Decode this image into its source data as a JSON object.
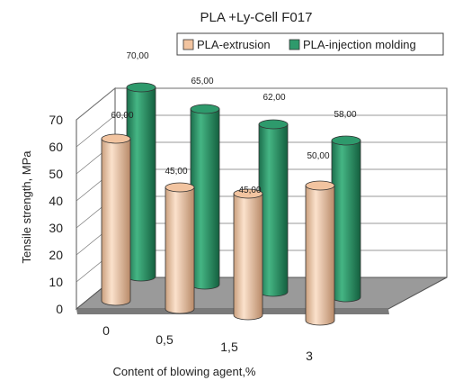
{
  "chart_data": {
    "type": "bar",
    "title": "PLA +Ly-Cell F017",
    "xlabel": "Content of blowing agent,%",
    "ylabel": "Tensile strength, MPa",
    "categories": [
      "0",
      "0,5",
      "1,5",
      "3"
    ],
    "series": [
      {
        "name": "PLA-extrusion",
        "values": [
          60,
          45,
          45,
          50
        ],
        "labels": [
          "60,00",
          "45,00",
          "45,00",
          "50,00"
        ],
        "color": "#F2C4A0"
      },
      {
        "name": "PLA-injection molding",
        "values": [
          70,
          65,
          62,
          58
        ],
        "labels": [
          "70,00",
          "65,00",
          "62,00",
          "58,00"
        ],
        "color": "#2E9A6C"
      }
    ],
    "ylim": [
      0,
      70
    ],
    "yticks": [
      "0",
      "10",
      "20",
      "30",
      "40",
      "50",
      "60",
      "70"
    ],
    "grid": true,
    "legend": "top-right",
    "style": "3d-cylinder"
  }
}
